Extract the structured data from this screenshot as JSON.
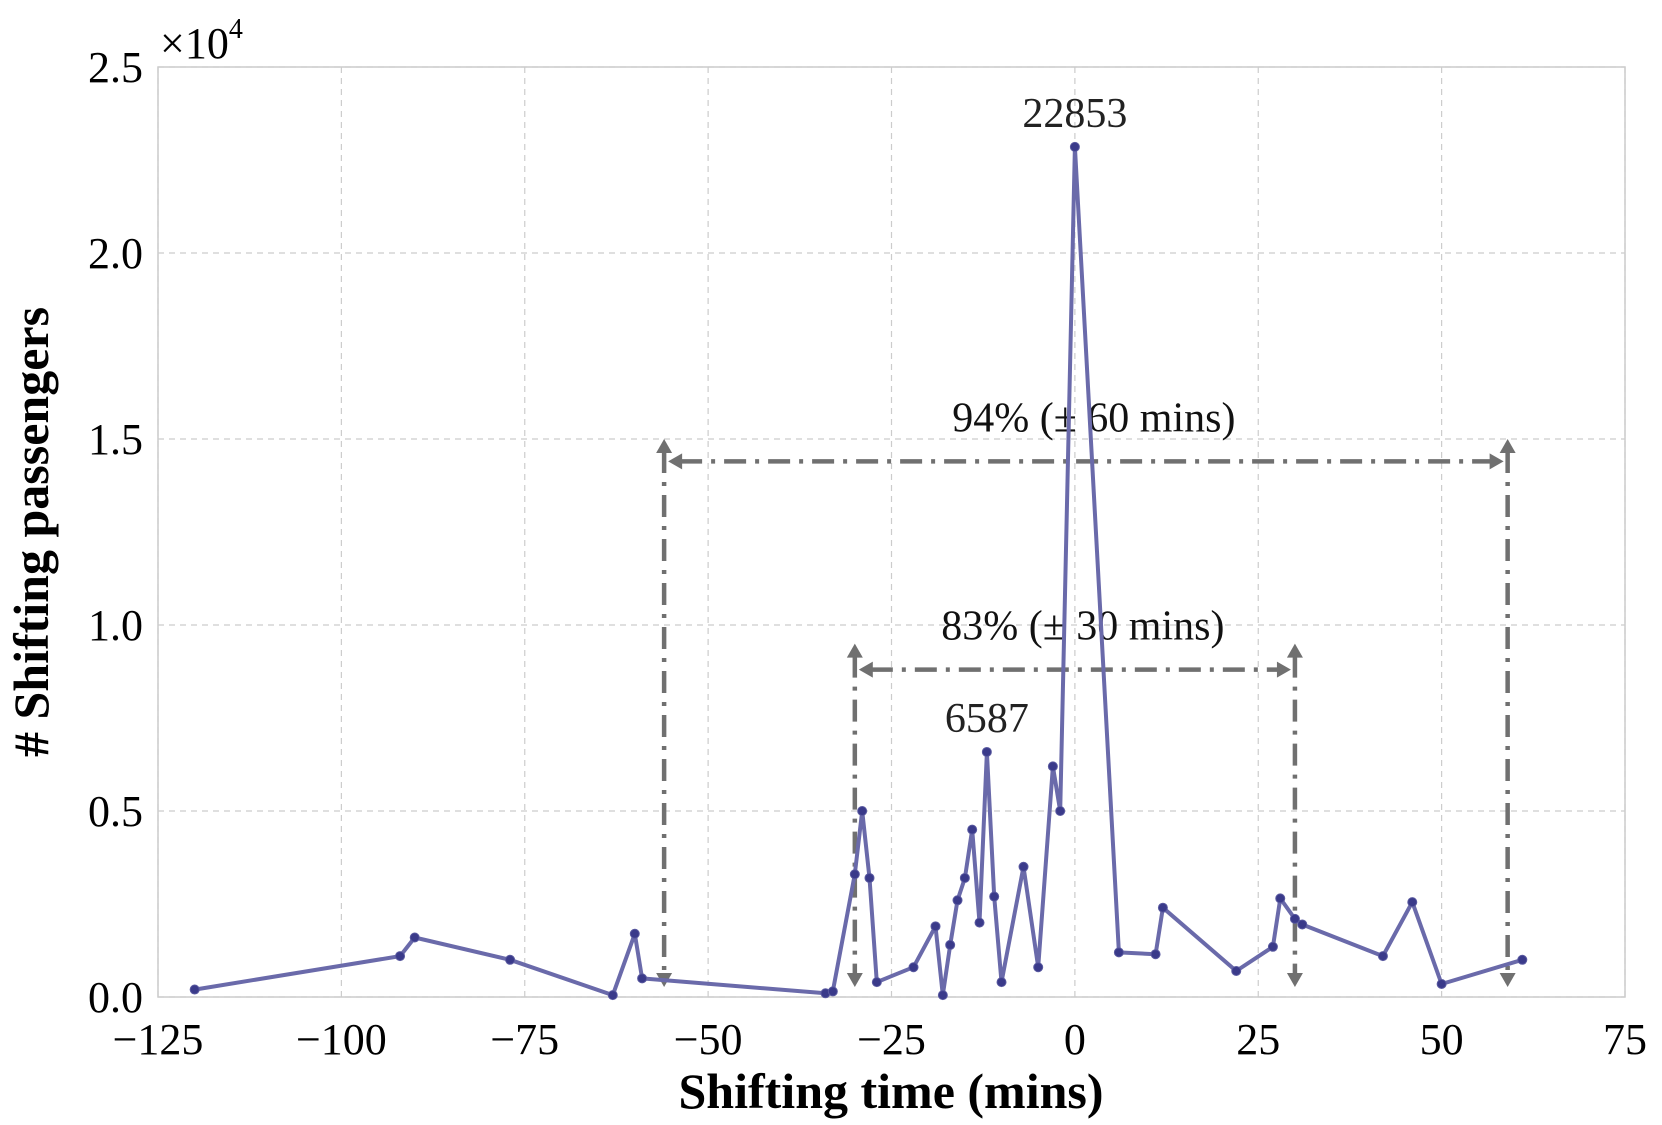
{
  "chart_data": {
    "type": "line",
    "title": "",
    "xlabel": "Shifting time (mins)",
    "ylabel": "# Shifting passengers",
    "multiplier_label": "×10",
    "multiplier_exponent": "4",
    "xlim": [
      -125,
      75
    ],
    "ylim": [
      0,
      25000
    ],
    "xticks": [
      -125,
      -100,
      -75,
      -50,
      -25,
      0,
      25,
      50,
      75
    ],
    "xtick_labels": [
      "−125",
      "−100",
      "−75",
      "−50",
      "−25",
      "0",
      "25",
      "50",
      "75"
    ],
    "yticks": [
      0,
      5000,
      10000,
      15000,
      20000,
      25000
    ],
    "ytick_labels": [
      "0.0",
      "0.5",
      "1.0",
      "1.5",
      "2.0",
      "2.5"
    ],
    "grid": true,
    "series": [
      {
        "name": "Shifting passengers",
        "color": "#6a6aaa",
        "points": [
          [
            -120,
            200
          ],
          [
            -92,
            1100
          ],
          [
            -90,
            1600
          ],
          [
            -77,
            1000
          ],
          [
            -63,
            50
          ],
          [
            -60,
            1700
          ],
          [
            -59,
            500
          ],
          [
            -34,
            100
          ],
          [
            -33,
            150
          ],
          [
            -30,
            3300
          ],
          [
            -29,
            5000
          ],
          [
            -28,
            3200
          ],
          [
            -27,
            400
          ],
          [
            -22,
            800
          ],
          [
            -19,
            1900
          ],
          [
            -18,
            50
          ],
          [
            -17,
            1400
          ],
          [
            -16,
            2600
          ],
          [
            -15,
            3200
          ],
          [
            -14,
            4500
          ],
          [
            -13,
            2000
          ],
          [
            -12,
            6587
          ],
          [
            -11,
            2700
          ],
          [
            -10,
            400
          ],
          [
            -7,
            3500
          ],
          [
            -5,
            800
          ],
          [
            -3,
            6200
          ],
          [
            -2,
            5000
          ],
          [
            0,
            22853
          ],
          [
            6,
            1200
          ],
          [
            11,
            1150
          ],
          [
            12,
            2400
          ],
          [
            22,
            700
          ],
          [
            27,
            1350
          ],
          [
            28,
            2650
          ],
          [
            30,
            2100
          ],
          [
            31,
            1950
          ],
          [
            42,
            1100
          ],
          [
            46,
            2550
          ],
          [
            50,
            350
          ],
          [
            61,
            1000
          ]
        ]
      }
    ],
    "annotations": [
      {
        "text": "22853",
        "x": 0,
        "y": 22853
      },
      {
        "text": "6587",
        "x": -12,
        "y": 6587
      }
    ],
    "ranges": [
      {
        "label": "94% (± 60 mins)",
        "x_start": -56,
        "x_end": 59,
        "arrow_y": 14400,
        "top_y": 15000
      },
      {
        "label": "83% (± 30 mins)",
        "x_start": -30,
        "x_end": 30,
        "arrow_y": 8800,
        "top_y": 9500
      }
    ]
  }
}
